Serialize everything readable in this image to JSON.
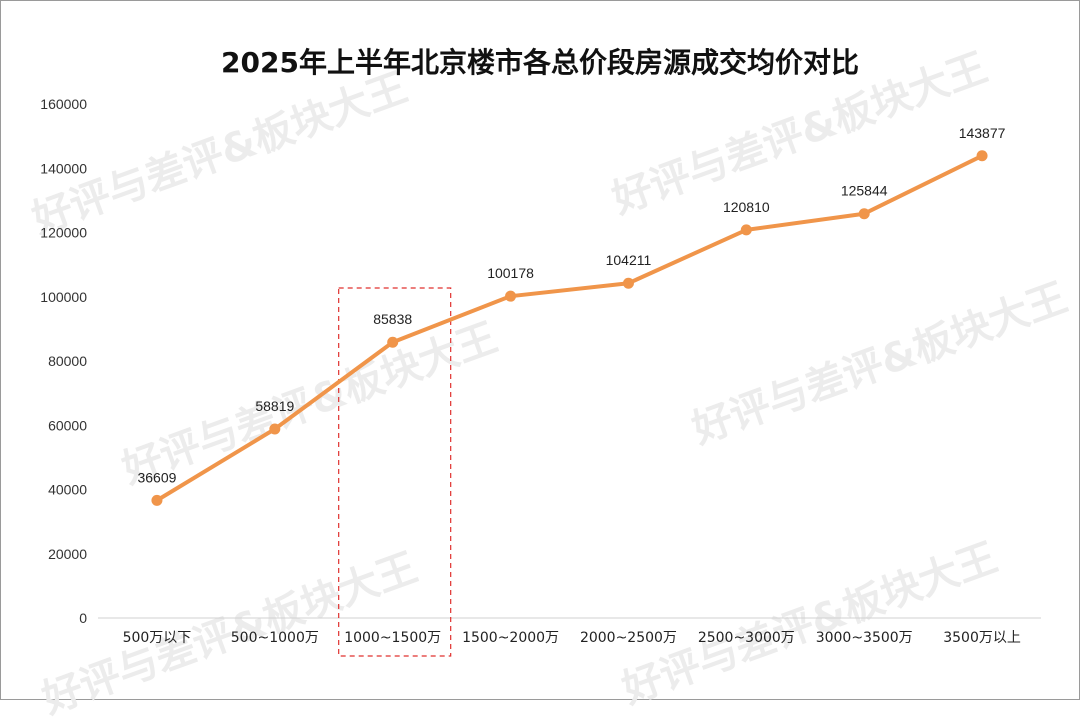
{
  "watermark": "好评与差评&板块大王",
  "chart_data": {
    "type": "line",
    "title": "2025年上半年北京楼市各总价段房源成交均价对比",
    "categories": [
      "500万以下",
      "500~1000万",
      "1000~1500万",
      "1500~2000万",
      "2000~2500万",
      "2500~3000万",
      "3000~3500万",
      "3500万以上"
    ],
    "series": [
      {
        "values": [
          36609,
          58819,
          85838,
          100178,
          104211,
          120810,
          125844,
          143877
        ]
      }
    ],
    "ylim": [
      0,
      160000
    ],
    "yticks": [
      0,
      20000,
      40000,
      60000,
      80000,
      100000,
      120000,
      140000,
      160000
    ],
    "grid": false,
    "highlighted_category": "1000~1500万",
    "colors": {
      "line": "#f0954a",
      "highlight_box": "#e0312f",
      "axis": "#d0d0d0"
    }
  }
}
